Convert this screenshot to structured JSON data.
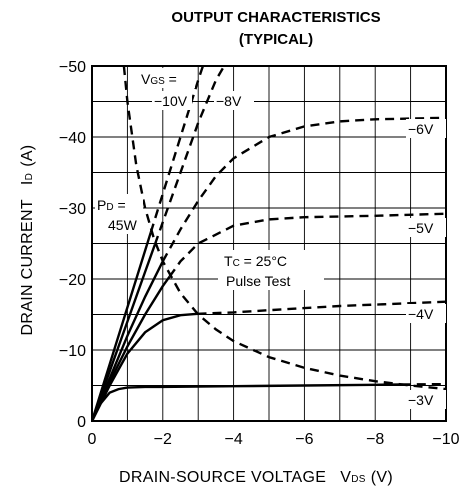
{
  "chart_data": {
    "type": "line",
    "title_line1": "OUTPUT CHARACTERISTICS",
    "title_line2": "(TYPICAL)",
    "xlabel": "DRAIN-SOURCE VOLTAGE",
    "xlabel_symbol": "V",
    "xlabel_sub": "DS",
    "xlabel_unit": "(V)",
    "ylabel": "DRAIN CURRENT",
    "ylabel_symbol": "I",
    "ylabel_sub": "D",
    "ylabel_unit": "(A)",
    "xlim": [
      0,
      -10
    ],
    "ylim": [
      0,
      -50
    ],
    "x_ticks": [
      "0",
      "−2",
      "−4",
      "−6",
      "−8",
      "−10"
    ],
    "y_ticks": [
      "0",
      "−10",
      "−20",
      "−30",
      "−40",
      "−50"
    ],
    "grid": true,
    "annotations": {
      "vgs_symbol": "V",
      "vgs_sub": "GS",
      "vgs_eq": " =",
      "pd_symbol": "P",
      "pd_sub": "D",
      "pd_eq": " =",
      "pd_value": "45W",
      "tc_symbol": "T",
      "tc_sub": "C",
      "tc_eq": " = 25°C",
      "pulse": "Pulse Test"
    },
    "series": [
      {
        "name": "−10V",
        "style": "solid-then-dashed",
        "points": [
          [
            0,
            0
          ],
          [
            -0.5,
            -8
          ],
          [
            -1,
            -16
          ],
          [
            -1.5,
            -24
          ],
          [
            -2,
            -32
          ],
          [
            -2.5,
            -40
          ],
          [
            -3,
            -48
          ],
          [
            -3.2,
            -51
          ]
        ]
      },
      {
        "name": "−8V",
        "style": "solid-then-dashed",
        "points": [
          [
            0,
            0
          ],
          [
            -0.5,
            -7
          ],
          [
            -1,
            -14
          ],
          [
            -1.5,
            -21
          ],
          [
            -2,
            -28
          ],
          [
            -2.5,
            -35
          ],
          [
            -3,
            -42
          ],
          [
            -3.5,
            -48
          ],
          [
            -3.85,
            -51
          ]
        ]
      },
      {
        "name": "−6V",
        "style": "solid-then-dashed",
        "points": [
          [
            0,
            0
          ],
          [
            -0.5,
            -6
          ],
          [
            -1,
            -12
          ],
          [
            -1.5,
            -17.5
          ],
          [
            -2,
            -22.5
          ],
          [
            -2.5,
            -27
          ],
          [
            -3,
            -31
          ],
          [
            -3.5,
            -34.5
          ],
          [
            -4,
            -37
          ],
          [
            -5,
            -40
          ],
          [
            -6,
            -41.5
          ],
          [
            -7,
            -42.2
          ],
          [
            -8,
            -42.5
          ],
          [
            -10,
            -42.7
          ]
        ]
      },
      {
        "name": "−5V",
        "style": "solid-then-dashed",
        "points": [
          [
            0,
            0
          ],
          [
            -0.5,
            -5.5
          ],
          [
            -1,
            -10.5
          ],
          [
            -1.5,
            -15
          ],
          [
            -2,
            -19
          ],
          [
            -2.5,
            -22.5
          ],
          [
            -3,
            -25
          ],
          [
            -4,
            -27.5
          ],
          [
            -5,
            -28.4
          ],
          [
            -6,
            -28.7
          ],
          [
            -7,
            -28.8
          ],
          [
            -8,
            -28.9
          ],
          [
            -10,
            -29.2
          ]
        ]
      },
      {
        "name": "−4V",
        "style": "solid-then-dashed",
        "points": [
          [
            0,
            0
          ],
          [
            -0.5,
            -5
          ],
          [
            -1,
            -9.5
          ],
          [
            -1.5,
            -12.5
          ],
          [
            -2,
            -14.2
          ],
          [
            -2.5,
            -14.9
          ],
          [
            -3,
            -15.1
          ],
          [
            -4,
            -15.3
          ],
          [
            -5,
            -15.6
          ],
          [
            -6,
            -15.9
          ],
          [
            -7,
            -16.2
          ],
          [
            -8,
            -16.4
          ],
          [
            -10,
            -16.8
          ]
        ]
      },
      {
        "name": "−3V",
        "style": "solid-then-dashed",
        "points": [
          [
            0,
            0
          ],
          [
            -0.25,
            -2.5
          ],
          [
            -0.5,
            -4
          ],
          [
            -0.75,
            -4.5
          ],
          [
            -1,
            -4.7
          ],
          [
            -1.5,
            -4.8
          ],
          [
            -2,
            -4.8
          ],
          [
            -4,
            -4.9
          ],
          [
            -6,
            -5
          ],
          [
            -8,
            -5.1
          ],
          [
            -10,
            -5.2
          ]
        ]
      },
      {
        "name": "P_D = 45W",
        "style": "dashed",
        "points": [
          [
            -0.9,
            -50
          ],
          [
            -1,
            -45
          ],
          [
            -1.25,
            -36
          ],
          [
            -1.5,
            -30
          ],
          [
            -1.75,
            -25.7
          ],
          [
            -2,
            -22.5
          ],
          [
            -2.5,
            -18
          ],
          [
            -3,
            -15
          ],
          [
            -3.5,
            -12.9
          ],
          [
            -4,
            -11.25
          ],
          [
            -5,
            -9
          ],
          [
            -6,
            -7.5
          ],
          [
            -7,
            -6.4
          ],
          [
            -8,
            -5.6
          ],
          [
            -9,
            -5
          ],
          [
            -10,
            -4.5
          ]
        ]
      }
    ]
  }
}
